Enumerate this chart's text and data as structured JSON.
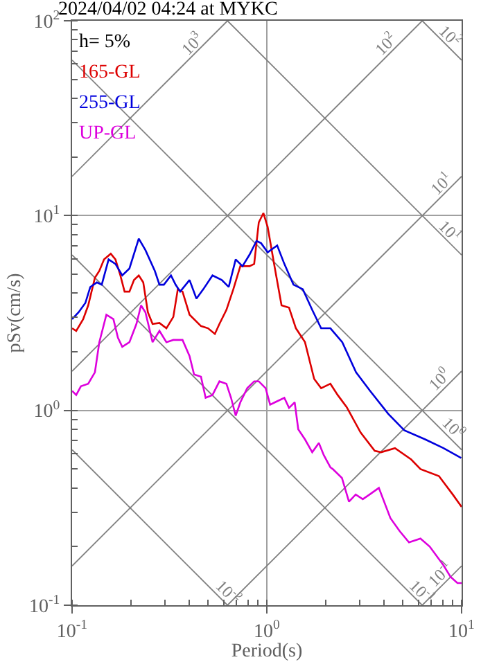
{
  "chart_data": {
    "type": "line",
    "title": "2024/04/02 04:24 at MYKC",
    "xlabel": "Period(s)",
    "ylabel": "pSv(cm/s)",
    "log": "xy",
    "grid": true,
    "xlim": [
      0.1,
      10
    ],
    "xticks": [
      {
        "value": 0.1,
        "label": "10$^{-1}$"
      },
      {
        "value": 1,
        "label": "10$^{0}$"
      },
      {
        "value": 10,
        "label": "10$^{1}$"
      }
    ],
    "ylim": [
      0.1,
      100
    ],
    "yticks": [
      {
        "value": 0.1,
        "label": "10$^{-1}$"
      },
      {
        "value": 1,
        "label": "10$^{0}$"
      },
      {
        "value": 10,
        "label": "10$^{1}$"
      },
      {
        "value": 100,
        "label": "10$^{2}$"
      }
    ],
    "annotations": [
      "h= 5%",
      {
        "text": "10$^{3}$",
        "x": 0.445,
        "y": 70.8
      },
      {
        "text": "10$^{2}$",
        "x": 4.41,
        "y": 70.2
      },
      {
        "text": "10$^{2}$",
        "x": 8.07,
        "y": 77.8
      },
      {
        "text": "10$^{1}$",
        "x": 8.49,
        "y": 13.5
      },
      {
        "text": "10$^{1}$",
        "x": 8.07,
        "y": 7.78
      },
      {
        "text": "10$^{0}$",
        "x": 8.36,
        "y": 1.33
      },
      {
        "text": "10$^{0}$",
        "x": 8.36,
        "y": 0.751
      },
      {
        "text": "10$^{-2}$",
        "x": 0.587,
        "y": 0.107
      },
      {
        "text": "10$^{-1}$",
        "x": 5.82,
        "y": 0.108
      },
      {
        "text": "10$^{-1}$",
        "x": 8.36,
        "y": 0.133
      }
    ],
    "series": [
      {
        "name": "165-GL",
        "color": "#dd0000",
        "x": [
          0.1,
          0.105,
          0.114,
          0.121,
          0.131,
          0.138,
          0.146,
          0.158,
          0.167,
          0.177,
          0.186,
          0.197,
          0.208,
          0.22,
          0.232,
          0.245,
          0.259,
          0.281,
          0.305,
          0.331,
          0.349,
          0.369,
          0.401,
          0.459,
          0.499,
          0.541,
          0.571,
          0.62,
          0.673,
          0.731,
          0.815,
          0.861,
          0.909,
          0.96,
          1.01,
          1.1,
          1.19,
          1.3,
          1.41,
          1.57,
          1.75,
          1.9,
          2.12,
          2.31,
          2.57,
          3.03,
          3.58,
          3.86,
          4.55,
          5.51,
          6.15,
          7.65,
          9.01,
          10
        ],
        "values": [
          2.64,
          2.56,
          2.94,
          3.46,
          4.8,
          5.2,
          5.96,
          6.37,
          5.96,
          4.93,
          4.07,
          4.07,
          4.67,
          4.93,
          4.54,
          3.19,
          2.78,
          2.81,
          2.64,
          3.02,
          4.19,
          4.07,
          3.1,
          2.71,
          2.64,
          2.47,
          2.78,
          3.28,
          4.19,
          5.5,
          5.5,
          5.65,
          9.22,
          10.3,
          8.73,
          5.35,
          3.46,
          3.37,
          2.64,
          2.24,
          1.45,
          1.3,
          1.37,
          1.2,
          1.04,
          0.77,
          0.62,
          0.61,
          0.64,
          0.56,
          0.5,
          0.46,
          0.37,
          0.32
        ]
      },
      {
        "name": "255-GL",
        "color": "#0000dd",
        "x": [
          0.1,
          0.108,
          0.117,
          0.124,
          0.134,
          0.142,
          0.154,
          0.167,
          0.181,
          0.197,
          0.22,
          0.238,
          0.266,
          0.281,
          0.296,
          0.322,
          0.34,
          0.359,
          0.401,
          0.435,
          0.472,
          0.526,
          0.587,
          0.637,
          0.692,
          0.75,
          0.815,
          0.885,
          0.934,
          1.01,
          1.13,
          1.23,
          1.37,
          1.53,
          1.71,
          1.9,
          2.12,
          2.44,
          2.87,
          3.39,
          4.2,
          5.08,
          6.5,
          8.07,
          9.95
        ],
        "values": [
          2.94,
          3.19,
          3.56,
          4.3,
          4.54,
          4.42,
          5.96,
          5.65,
          4.93,
          5.35,
          7.62,
          6.65,
          5.2,
          4.42,
          4.42,
          4.93,
          4.42,
          4.07,
          4.67,
          3.75,
          4.19,
          4.93,
          4.67,
          4.3,
          5.96,
          5.5,
          6.3,
          7.41,
          7.22,
          6.48,
          7.02,
          5.65,
          4.42,
          4.19,
          3.28,
          2.64,
          2.64,
          2.24,
          1.57,
          1.26,
          0.96,
          0.79,
          0.71,
          0.64,
          0.57
        ]
      },
      {
        "name": "UP-GL",
        "color": "#dd00dd",
        "x": [
          0.1,
          0.105,
          0.111,
          0.121,
          0.131,
          0.138,
          0.15,
          0.163,
          0.172,
          0.181,
          0.197,
          0.214,
          0.226,
          0.238,
          0.259,
          0.281,
          0.305,
          0.331,
          0.369,
          0.401,
          0.423,
          0.459,
          0.485,
          0.526,
          0.571,
          0.62,
          0.655,
          0.692,
          0.731,
          0.793,
          0.861,
          0.909,
          0.986,
          1.04,
          1.1,
          1.23,
          1.3,
          1.39,
          1.45,
          1.57,
          1.71,
          1.85,
          1.96,
          2.12,
          2.18,
          2.43,
          2.64,
          2.86,
          3.11,
          3.37,
          3.76,
          4.31,
          4.81,
          5.37,
          6.15,
          6.86,
          8.08,
          8.77,
          9.52,
          10
        ],
        "values": [
          1.26,
          1.2,
          1.33,
          1.37,
          1.57,
          2.24,
          3.1,
          2.94,
          2.36,
          2.12,
          2.24,
          2.78,
          3.46,
          3.19,
          2.24,
          2.56,
          2.24,
          2.3,
          2.3,
          1.9,
          1.53,
          1.49,
          1.16,
          1.2,
          1.41,
          1.37,
          1.16,
          0.94,
          1.1,
          1.3,
          1.41,
          1.41,
          1.3,
          1.07,
          1.1,
          1.16,
          1.03,
          1.1,
          0.8,
          0.71,
          0.61,
          0.68,
          0.59,
          0.51,
          0.5,
          0.45,
          0.34,
          0.37,
          0.35,
          0.37,
          0.4,
          0.28,
          0.24,
          0.21,
          0.22,
          0.2,
          0.16,
          0.14,
          0.13,
          0.13
        ]
      },
      {
        "color": "#808080",
        "x": [
          0.1,
          0.628
        ],
        "values": [
          15.9,
          100
        ]
      },
      {
        "color": "#808080",
        "x": [
          0.1,
          6.28
        ],
        "values": [
          1.59,
          100
        ]
      },
      {
        "color": "#808080",
        "x": [
          0.1,
          10
        ],
        "values": [
          0.159,
          15.9
        ]
      },
      {
        "color": "#808080",
        "x": [
          0.628,
          10
        ],
        "values": [
          0.1,
          1.59
        ]
      },
      {
        "color": "#808080",
        "x": [
          6.28,
          10
        ],
        "values": [
          0.1,
          0.159
        ]
      },
      {
        "color": "#808080",
        "x": [
          6.28,
          10
        ],
        "values": [
          100,
          62.8
        ]
      },
      {
        "color": "#808080",
        "x": [
          0.628,
          10
        ],
        "values": [
          100,
          6.28
        ]
      },
      {
        "color": "#808080",
        "x": [
          0.1,
          10
        ],
        "values": [
          62.8,
          0.628
        ]
      },
      {
        "color": "#808080",
        "x": [
          0.1,
          6.28
        ],
        "values": [
          6.28,
          0.1
        ]
      },
      {
        "color": "#808080",
        "x": [
          0.1,
          0.628
        ],
        "values": [
          0.628,
          0.1
        ]
      }
    ]
  }
}
